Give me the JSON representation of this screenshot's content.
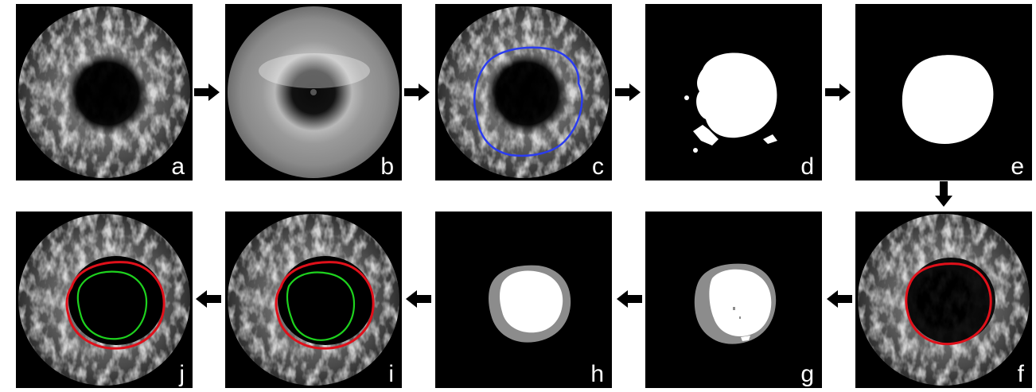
{
  "panels": {
    "a": {
      "label": "a"
    },
    "b": {
      "label": "b"
    },
    "c": {
      "label": "c"
    },
    "d": {
      "label": "d"
    },
    "e": {
      "label": "e"
    },
    "f": {
      "label": "f"
    },
    "g": {
      "label": "g"
    },
    "h": {
      "label": "h"
    },
    "i": {
      "label": "i"
    },
    "j": {
      "label": "j"
    }
  },
  "colors": {
    "contour_blue": "#2a3cf0",
    "contour_red": "#e0101a",
    "contour_green": "#1ed21e",
    "mask_white": "#ffffff",
    "mask_gray": "#8c8c8c",
    "arrow": "#000000"
  },
  "flow": [
    "a",
    "b",
    "c",
    "d",
    "e",
    "f",
    "g",
    "h",
    "i",
    "j"
  ]
}
